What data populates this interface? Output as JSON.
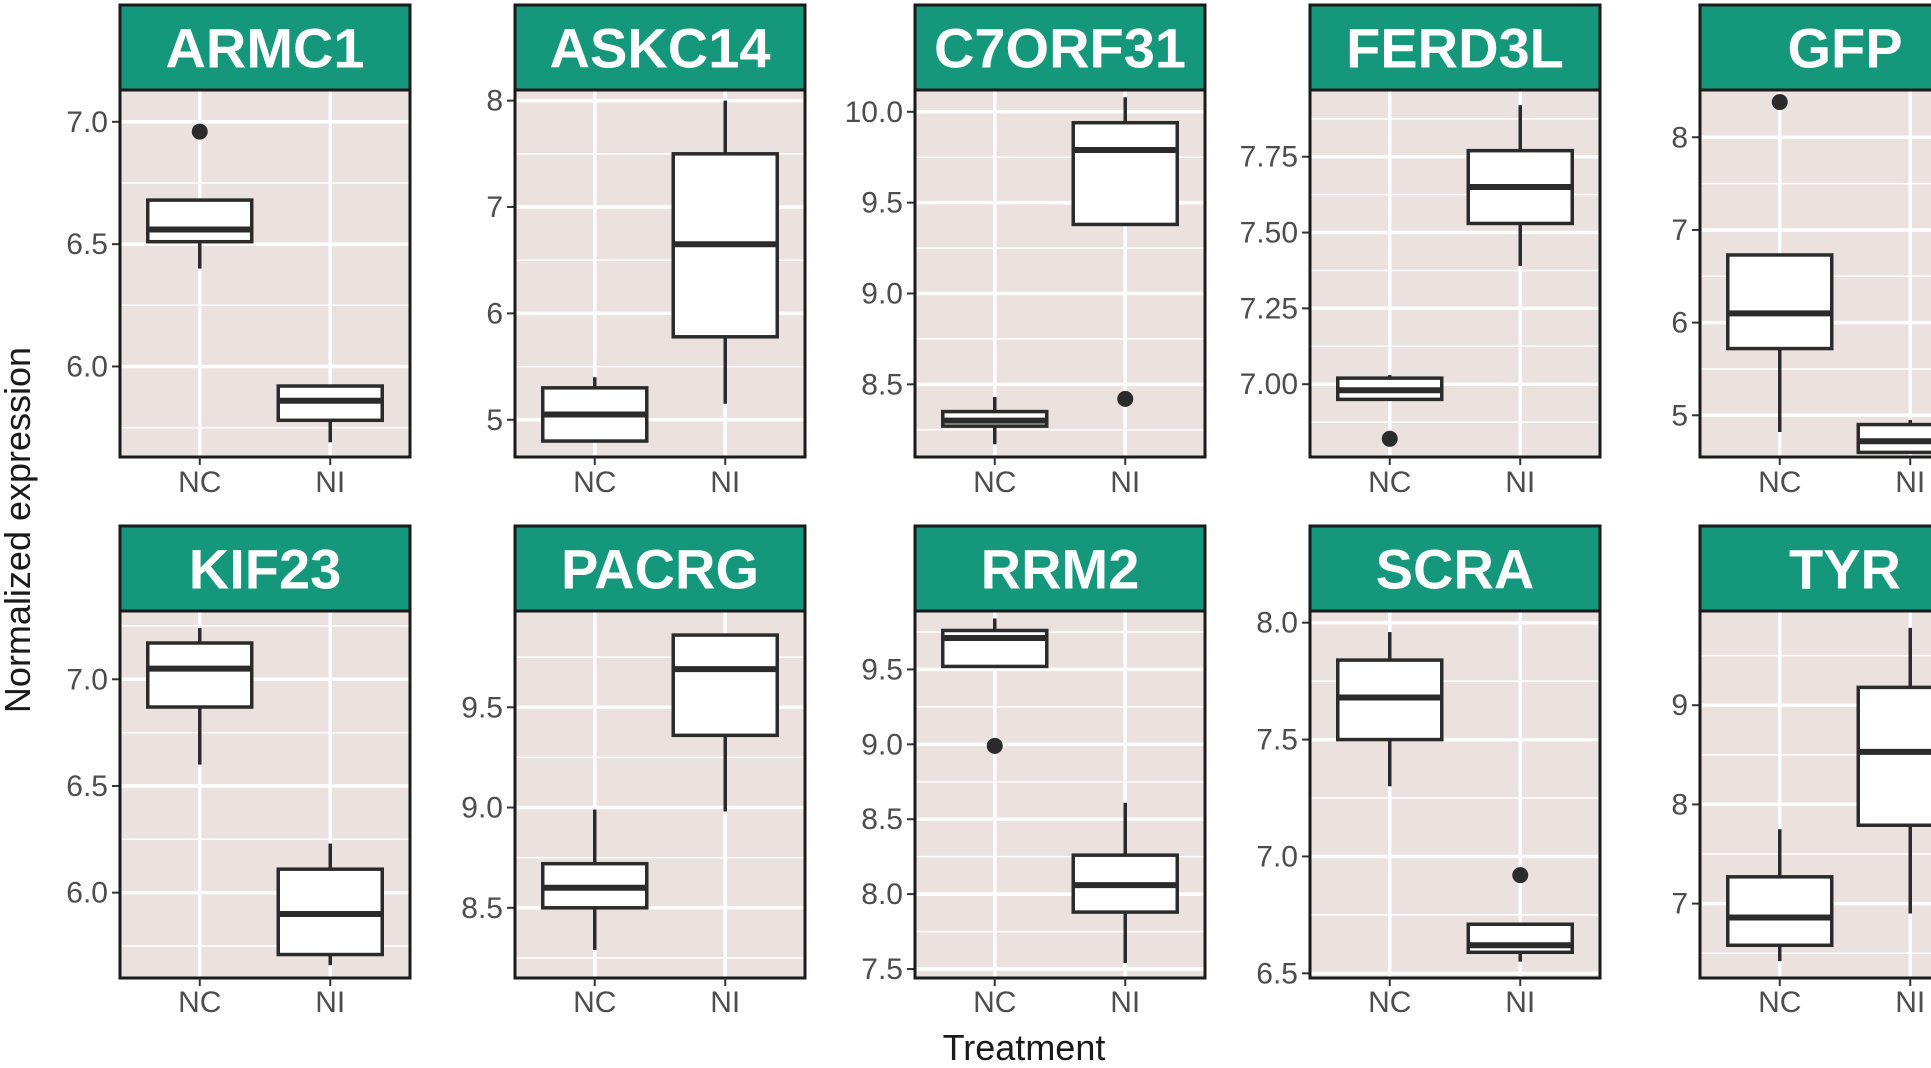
{
  "chart_data": {
    "type": "boxplot",
    "xlabel": "Treatment",
    "ylabel": "Normalized expression",
    "categories": [
      "NC",
      "NI"
    ],
    "colors": {
      "strip": "#14977a",
      "panel": "#ebe1df",
      "grid": "#ffffff",
      "box_fill": "#ffffff",
      "box_line": "#2b2b2b",
      "outlier": "#2b2b2b",
      "border": "#1a1a1a"
    },
    "panels": [
      {
        "gene": "ARMC1",
        "ylim": [
          5.63,
          7.13
        ],
        "yticks": [
          6.0,
          6.5,
          7.0
        ],
        "ytick_labels": [
          "6.0",
          "6.5",
          "7.0"
        ],
        "boxes": [
          {
            "group": "NC",
            "whisker_low": 6.4,
            "q1": 6.51,
            "median": 6.56,
            "q3": 6.68,
            "whisker_high": 6.68,
            "outliers": [
              6.96
            ]
          },
          {
            "group": "NI",
            "whisker_low": 5.69,
            "q1": 5.78,
            "median": 5.86,
            "q3": 5.92,
            "whisker_high": 5.92,
            "outliers": []
          }
        ]
      },
      {
        "gene": "ASKC14",
        "ylim": [
          4.65,
          8.1
        ],
        "yticks": [
          5,
          6,
          7,
          8
        ],
        "ytick_labels": [
          "5",
          "6",
          "7",
          "8"
        ],
        "boxes": [
          {
            "group": "NC",
            "whisker_low": 4.8,
            "q1": 4.8,
            "median": 5.05,
            "q3": 5.3,
            "whisker_high": 5.4,
            "outliers": []
          },
          {
            "group": "NI",
            "whisker_low": 5.15,
            "q1": 5.78,
            "median": 6.65,
            "q3": 7.5,
            "whisker_high": 8.0,
            "outliers": []
          }
        ]
      },
      {
        "gene": "C7ORF31",
        "ylim": [
          8.1,
          10.12
        ],
        "yticks": [
          8.5,
          9.0,
          9.5,
          10.0
        ],
        "ytick_labels": [
          "8.5",
          "9.0",
          "9.5",
          "10.0"
        ],
        "boxes": [
          {
            "group": "NC",
            "whisker_low": 8.17,
            "q1": 8.27,
            "median": 8.3,
            "q3": 8.35,
            "whisker_high": 8.43,
            "outliers": []
          },
          {
            "group": "NI",
            "whisker_low": 9.38,
            "q1": 9.38,
            "median": 9.79,
            "q3": 9.94,
            "whisker_high": 10.08,
            "outliers": [
              8.42
            ]
          }
        ]
      },
      {
        "gene": "FERD3L",
        "ylim": [
          6.76,
          7.97
        ],
        "yticks": [
          7.0,
          7.25,
          7.5,
          7.75
        ],
        "ytick_labels": [
          "7.00",
          "7.25",
          "7.50",
          "7.75"
        ],
        "boxes": [
          {
            "group": "NC",
            "whisker_low": 6.95,
            "q1": 6.95,
            "median": 6.98,
            "q3": 7.02,
            "whisker_high": 7.03,
            "outliers": [
              6.82
            ]
          },
          {
            "group": "NI",
            "whisker_low": 7.39,
            "q1": 7.53,
            "median": 7.65,
            "q3": 7.77,
            "whisker_high": 7.92,
            "outliers": []
          }
        ]
      },
      {
        "gene": "GFP",
        "ylim": [
          4.55,
          8.51
        ],
        "yticks": [
          5,
          6,
          7,
          8
        ],
        "ytick_labels": [
          "5",
          "6",
          "7",
          "8"
        ],
        "boxes": [
          {
            "group": "NC",
            "whisker_low": 4.82,
            "q1": 5.72,
            "median": 6.1,
            "q3": 6.73,
            "whisker_high": 6.73,
            "outliers": [
              8.38
            ]
          },
          {
            "group": "NI",
            "whisker_low": 4.6,
            "q1": 4.6,
            "median": 4.72,
            "q3": 4.9,
            "whisker_high": 4.95,
            "outliers": []
          }
        ]
      },
      {
        "gene": "KIF23",
        "ylim": [
          5.6,
          7.32
        ],
        "yticks": [
          6.0,
          6.5,
          7.0
        ],
        "ytick_labels": [
          "6.0",
          "6.5",
          "7.0"
        ],
        "boxes": [
          {
            "group": "NC",
            "whisker_low": 6.6,
            "q1": 6.87,
            "median": 7.05,
            "q3": 7.17,
            "whisker_high": 7.24,
            "outliers": []
          },
          {
            "group": "NI",
            "whisker_low": 5.66,
            "q1": 5.71,
            "median": 5.9,
            "q3": 6.11,
            "whisker_high": 6.23,
            "outliers": []
          }
        ]
      },
      {
        "gene": "PACRG",
        "ylim": [
          8.15,
          9.98
        ],
        "yticks": [
          8.5,
          9.0,
          9.5
        ],
        "ytick_labels": [
          "8.5",
          "9.0",
          "9.5"
        ],
        "boxes": [
          {
            "group": "NC",
            "whisker_low": 8.29,
            "q1": 8.5,
            "median": 8.6,
            "q3": 8.72,
            "whisker_high": 8.99,
            "outliers": []
          },
          {
            "group": "NI",
            "whisker_low": 8.98,
            "q1": 9.36,
            "median": 9.69,
            "q3": 9.86,
            "whisker_high": 9.86,
            "outliers": []
          }
        ]
      },
      {
        "gene": "RRM2",
        "ylim": [
          7.44,
          9.89
        ],
        "yticks": [
          7.5,
          8.0,
          8.5,
          9.0,
          9.5
        ],
        "ytick_labels": [
          "7.5",
          "8.0",
          "8.5",
          "9.0",
          "9.5"
        ],
        "boxes": [
          {
            "group": "NC",
            "whisker_low": 9.52,
            "q1": 9.52,
            "median": 9.71,
            "q3": 9.76,
            "whisker_high": 9.84,
            "outliers": [
              8.99
            ]
          },
          {
            "group": "NI",
            "whisker_low": 7.54,
            "q1": 7.88,
            "median": 8.06,
            "q3": 8.26,
            "whisker_high": 8.61,
            "outliers": []
          }
        ]
      },
      {
        "gene": "SCRA",
        "ylim": [
          6.48,
          8.05
        ],
        "yticks": [
          6.5,
          7.0,
          7.5,
          8.0
        ],
        "ytick_labels": [
          "6.5",
          "7.0",
          "7.5",
          "8.0"
        ],
        "boxes": [
          {
            "group": "NC",
            "whisker_low": 7.3,
            "q1": 7.5,
            "median": 7.68,
            "q3": 7.84,
            "whisker_high": 7.96,
            "outliers": []
          },
          {
            "group": "NI",
            "whisker_low": 6.55,
            "q1": 6.59,
            "median": 6.62,
            "q3": 6.71,
            "whisker_high": 6.71,
            "outliers": [
              6.92
            ]
          }
        ]
      },
      {
        "gene": "TYR",
        "ylim": [
          6.25,
          9.95
        ],
        "yticks": [
          7,
          8,
          9
        ],
        "ytick_labels": [
          "7",
          "8",
          "9"
        ],
        "boxes": [
          {
            "group": "NC",
            "whisker_low": 6.42,
            "q1": 6.58,
            "median": 6.86,
            "q3": 7.27,
            "whisker_high": 7.75,
            "outliers": []
          },
          {
            "group": "NI",
            "whisker_low": 6.9,
            "q1": 7.79,
            "median": 8.53,
            "q3": 9.18,
            "whisker_high": 9.78,
            "outliers": []
          }
        ]
      }
    ]
  }
}
